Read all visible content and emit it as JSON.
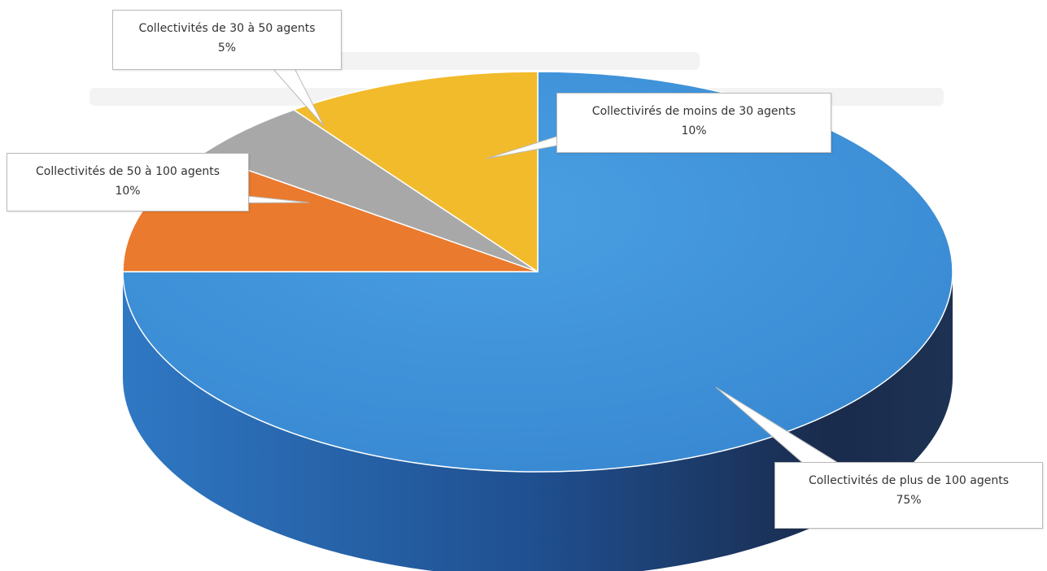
{
  "chart_data": {
    "type": "pie",
    "style": "3d",
    "legend": "none",
    "slices": [
      {
        "label": "Collectivités de plus de 100 agents",
        "percent_label": "75%",
        "value": 75,
        "color": "#3a8fd6"
      },
      {
        "label": "Collectivités de 50 à 100 agents",
        "percent_label": "10%",
        "value": 10,
        "color": "#ea7a2d"
      },
      {
        "label": "Collectivités de 30 à 50 agents",
        "percent_label": "5%",
        "value": 5,
        "color": "#a8a8a8"
      },
      {
        "label": "Collectivirés de moins de 30 agents",
        "percent_label": "10%",
        "value": 10,
        "color": "#f2bb2c"
      }
    ]
  }
}
